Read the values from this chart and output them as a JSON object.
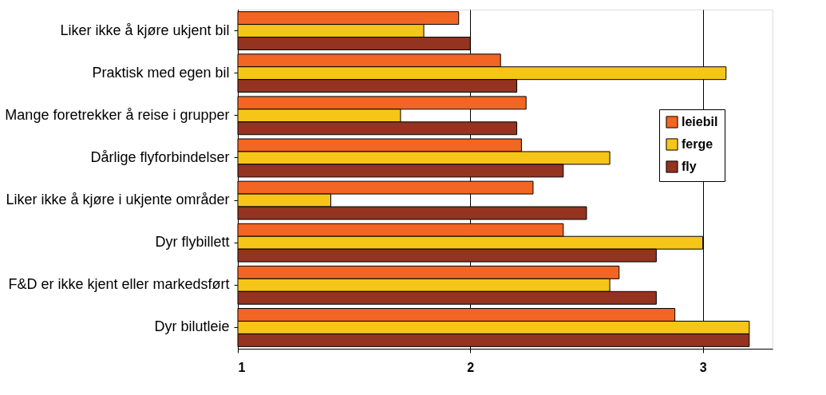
{
  "chart_data": {
    "type": "bar",
    "orientation": "horizontal",
    "categories": [
      "Liker ikke å kjøre ukjent bil",
      "Praktisk med egen bil",
      "Mange foretrekker å reise i grupper",
      "Dårlige flyforbindelser",
      "Liker ikke å kjøre i ukjente områder",
      "Dyr flybillett",
      "F&D er ikke kjent eller markedsført",
      "Dyr bilutleie"
    ],
    "series": [
      {
        "name": "leiebil",
        "color": "#f26522",
        "values": [
          1.95,
          2.13,
          2.24,
          2.22,
          2.27,
          2.4,
          2.64,
          2.88
        ]
      },
      {
        "name": "ferge",
        "color": "#f5c518",
        "values": [
          1.8,
          3.1,
          1.7,
          2.6,
          1.4,
          3.0,
          2.6,
          3.2
        ]
      },
      {
        "name": "fly",
        "color": "#933320",
        "values": [
          2.0,
          2.2,
          2.2,
          2.4,
          2.5,
          2.8,
          2.8,
          3.2
        ]
      }
    ],
    "xlim": [
      1,
      3.3
    ],
    "xticks": [
      1,
      2,
      3
    ],
    "grid": "x",
    "legend": "right"
  }
}
